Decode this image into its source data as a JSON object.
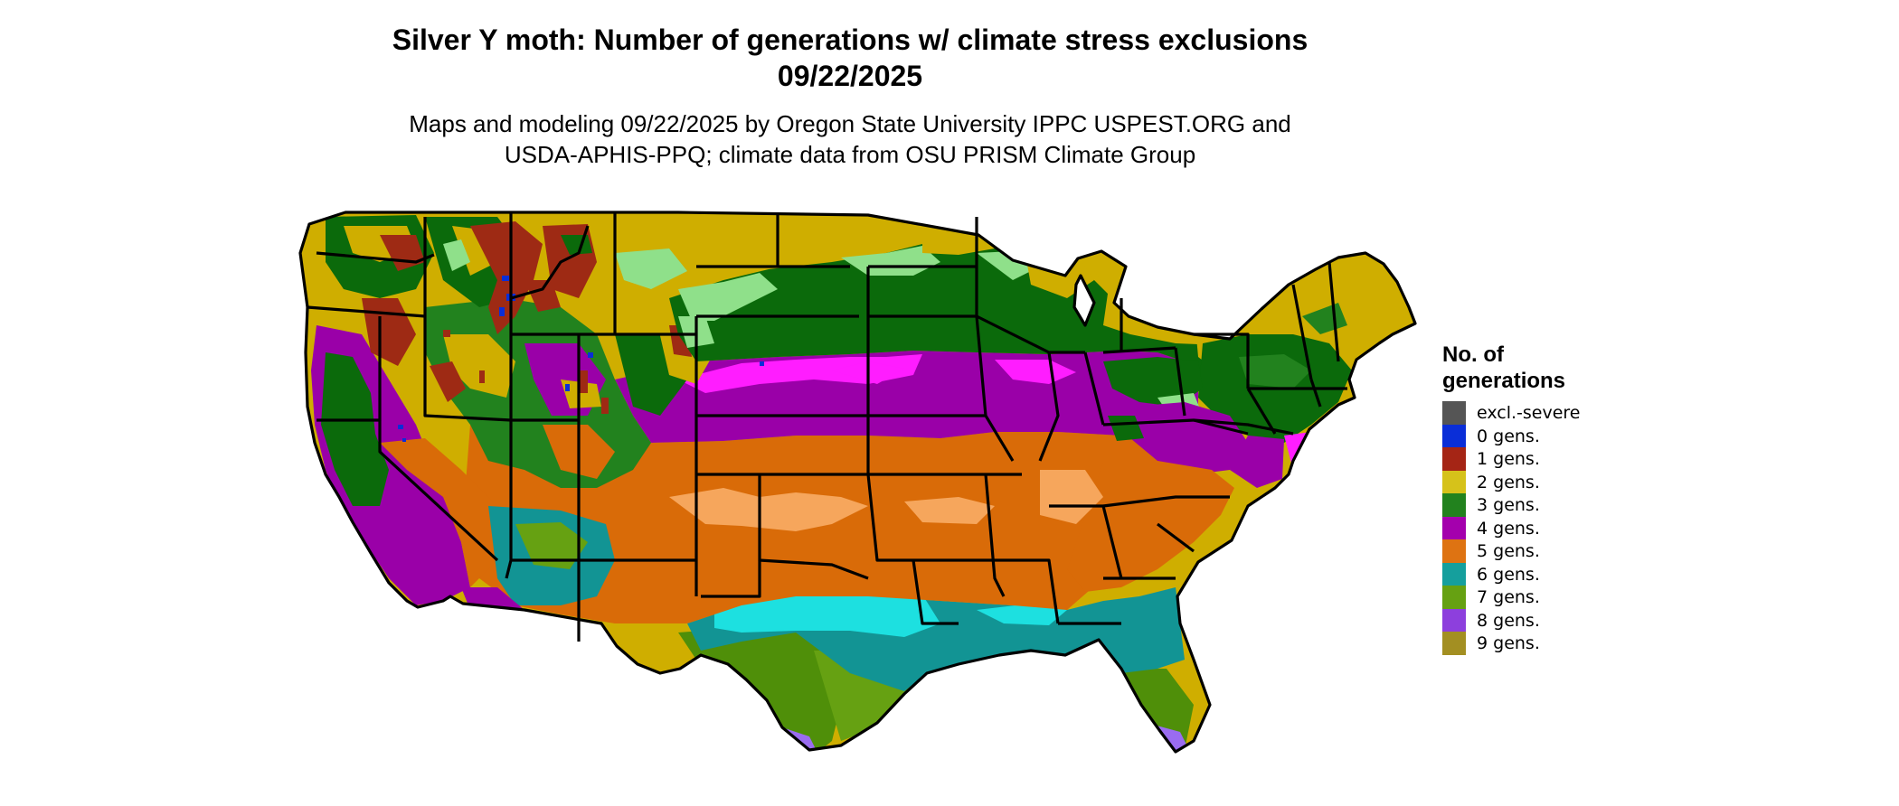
{
  "title_line1": "Silver Y moth: Number of generations w/ climate stress exclusions",
  "title_line2": "09/22/2025",
  "subtitle_line1": "Maps and modeling 09/22/2025 by Oregon State University IPPC USPEST.ORG and",
  "subtitle_line2": "USDA-APHIS-PPQ; climate data from OSU PRISM Climate Group",
  "legend": {
    "title_line1": "No. of",
    "title_line2": "generations",
    "items": [
      {
        "label": "excl.-severe",
        "color": "#555555"
      },
      {
        "label": "0 gens.",
        "color": "#0a2ed8"
      },
      {
        "label": "1 gens.",
        "color": "#a52515"
      },
      {
        "label": "2 gens.",
        "color": "#d6c21a"
      },
      {
        "label": "3 gens.",
        "color": "#22821e"
      },
      {
        "label": "4 gens.",
        "color": "#a400ad"
      },
      {
        "label": "5 gens.",
        "color": "#de7312"
      },
      {
        "label": "6 gens.",
        "color": "#159f9d"
      },
      {
        "label": "7 gens.",
        "color": "#66a112"
      },
      {
        "label": "8 gens.",
        "color": "#8d3fdd"
      },
      {
        "label": "9 gens.",
        "color": "#a38f22"
      }
    ]
  },
  "map_colors": {
    "excl_severe": "#555555",
    "gen0": "#0a2ed8",
    "gen1": "#9e2a14",
    "gen2": "#cfae00",
    "gen3_light": "#8fe08a",
    "gen3": "#0b6a0b",
    "gen4_light": "#ff1dff",
    "gen4": "#9a00a8",
    "gen5_light": "#f6a65c",
    "gen5": "#d96b08",
    "gen6_light": "#1de0e0",
    "gen6": "#129494",
    "gen7_light": "#a7f51a",
    "gen7": "#4f8f09",
    "gen8": "#9a6cf0",
    "borders": "#000000"
  }
}
